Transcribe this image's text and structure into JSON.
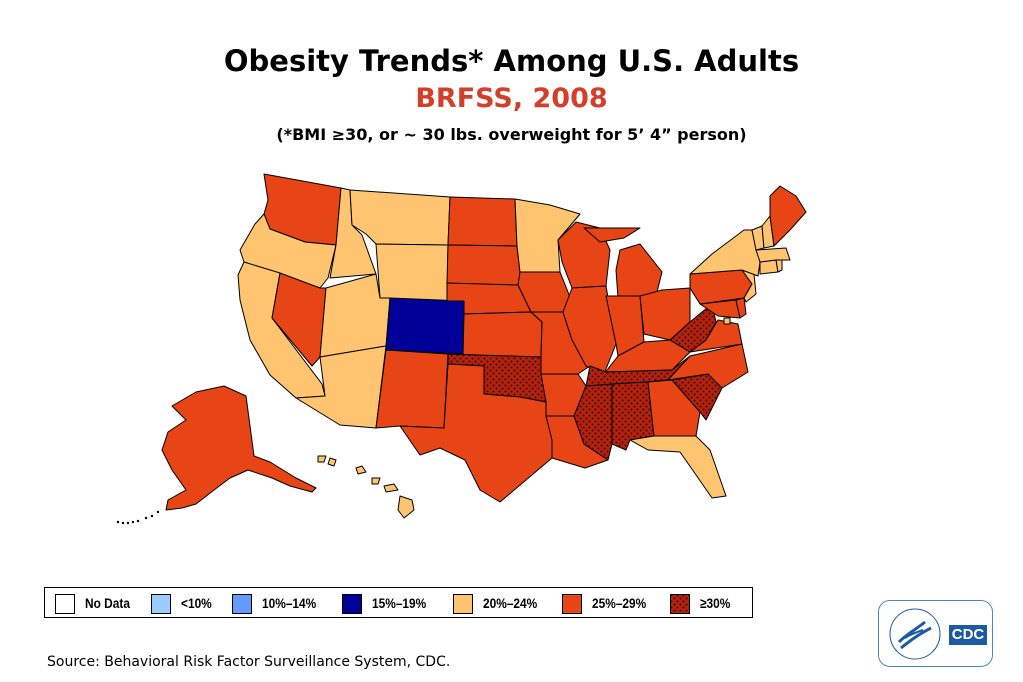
{
  "header": {
    "title": "Obesity Trends* Among U.S. Adults",
    "subtitle": "BRFSS, 2008",
    "note": "(*BMI ≥30, or ~ 30 lbs. overweight for 5’ 4” person)"
  },
  "colors": {
    "no_data": "#ffffff",
    "lt10": "#99ccff",
    "10_14": "#6699ff",
    "15_19": "#000099",
    "20_24": "#fec46f",
    "25_29": "#e84516",
    "30plus": "#b3220f",
    "border": "#000000"
  },
  "legend": [
    {
      "label": "No Data",
      "category": "no_data"
    },
    {
      "label": "<10%",
      "category": "lt10"
    },
    {
      "label": "10%–14%",
      "category": "10_14"
    },
    {
      "label": "15%–19%",
      "category": "15_19"
    },
    {
      "label": "20%–24%",
      "category": "20_24"
    },
    {
      "label": "25%–29%",
      "category": "25_29"
    },
    {
      "label": "≥30%",
      "category": "30plus"
    }
  ],
  "states": {
    "WA": "25_29",
    "OR": "20_24",
    "CA": "20_24",
    "ID": "20_24",
    "NV": "25_29",
    "MT": "20_24",
    "WY": "20_24",
    "UT": "20_24",
    "AZ": "20_24",
    "CO": "15_19",
    "NM": "25_29",
    "ND": "25_29",
    "SD": "25_29",
    "NE": "25_29",
    "KS": "25_29",
    "OK": "30plus",
    "TX": "25_29",
    "MN": "20_24",
    "IA": "25_29",
    "MO": "25_29",
    "AR": "25_29",
    "LA": "25_29",
    "WI": "25_29",
    "IL": "25_29",
    "MI": "25_29",
    "IN": "25_29",
    "OH": "25_29",
    "KY": "25_29",
    "TN": "30plus",
    "MS": "30plus",
    "AL": "30plus",
    "GA": "25_29",
    "FL": "20_24",
    "SC": "30plus",
    "NC": "25_29",
    "VA": "25_29",
    "WV": "30plus",
    "PA": "25_29",
    "NY": "20_24",
    "ME": "25_29",
    "VT": "20_24",
    "NH": "20_24",
    "MA": "20_24",
    "CT": "20_24",
    "RI": "20_24",
    "NJ": "20_24",
    "DE": "25_29",
    "MD": "25_29",
    "DC": "20_24",
    "AK": "25_29",
    "HI": "20_24"
  },
  "footer": {
    "source": "Source: Behavioral Risk Factor Surveillance System, CDC.",
    "logo_text": "CDC"
  }
}
